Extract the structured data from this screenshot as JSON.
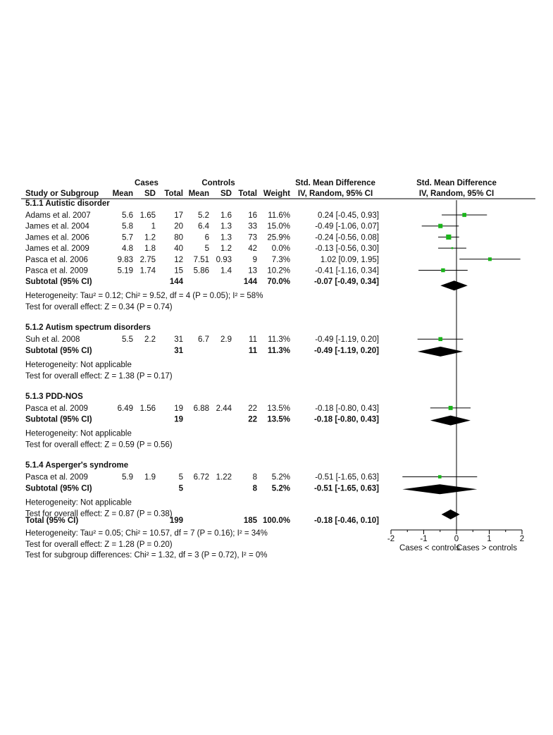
{
  "header": {
    "cases_label": "Cases",
    "controls_label": "Controls",
    "smd_title_left": "Std. Mean Difference",
    "smd_title_right": "Std. Mean Difference",
    "method_left": "IV, Random, 95% CI",
    "method_right": "IV, Random, 95% CI",
    "columns": [
      "Study or Subgroup",
      "Mean",
      "SD",
      "Total",
      "Mean",
      "SD",
      "Total",
      "Weight"
    ]
  },
  "chart_data": {
    "type": "forest",
    "xlim": [
      -2,
      2
    ],
    "xticks": [
      "-2",
      "-1",
      "0",
      "1",
      "2"
    ],
    "xlabel_left": "Cases < controls",
    "xlabel_right": "Cases > controls",
    "subgroups": [
      {
        "title": "5.1.1 Autistic disorder",
        "studies": [
          {
            "name": "Adams et al. 2007",
            "m1": "5.6",
            "sd1": "1.65",
            "n1": "17",
            "m2": "5.2",
            "sd2": "1.6",
            "n2": "16",
            "weight": "11.6%",
            "ci": "0.24 [-0.45, 0.93]",
            "est": 0.24,
            "lo": -0.45,
            "hi": 0.93,
            "w": 11.6
          },
          {
            "name": "James et al. 2004",
            "m1": "5.8",
            "sd1": "1",
            "n1": "20",
            "m2": "6.4",
            "sd2": "1.3",
            "n2": "33",
            "weight": "15.0%",
            "ci": "-0.49 [-1.06, 0.07]",
            "est": -0.49,
            "lo": -1.06,
            "hi": 0.07,
            "w": 15.0
          },
          {
            "name": "James et al. 2006",
            "m1": "5.7",
            "sd1": "1.2",
            "n1": "80",
            "m2": "6",
            "sd2": "1.3",
            "n2": "73",
            "weight": "25.9%",
            "ci": "-0.24 [-0.56, 0.08]",
            "est": -0.24,
            "lo": -0.56,
            "hi": 0.08,
            "w": 25.9
          },
          {
            "name": "James et al. 2009",
            "m1": "4.8",
            "sd1": "1.8",
            "n1": "40",
            "m2": "5",
            "sd2": "1.2",
            "n2": "42",
            "weight": "0.0%",
            "ci": "-0.13 [-0.56, 0.30]",
            "est": -0.13,
            "lo": -0.56,
            "hi": 0.3,
            "w": 0.0
          },
          {
            "name": "Pasca et al. 2006",
            "m1": "9.83",
            "sd1": "2.75",
            "n1": "12",
            "m2": "7.51",
            "sd2": "0.93",
            "n2": "9",
            "weight": "7.3%",
            "ci": "1.02 [0.09, 1.95]",
            "est": 1.02,
            "lo": 0.09,
            "hi": 1.95,
            "w": 7.3
          },
          {
            "name": "Pasca et al. 2009",
            "m1": "5.19",
            "sd1": "1.74",
            "n1": "15",
            "m2": "5.86",
            "sd2": "1.4",
            "n2": "13",
            "weight": "10.2%",
            "ci": "-0.41 [-1.16, 0.34]",
            "est": -0.41,
            "lo": -1.16,
            "hi": 0.34,
            "w": 10.2
          }
        ],
        "subtotal": {
          "label": "Subtotal (95% CI)",
          "n1": "144",
          "n2": "144",
          "weight": "70.0%",
          "ci": "-0.07 [-0.49, 0.34]",
          "est": -0.07,
          "lo": -0.49,
          "hi": 0.34
        },
        "heterogeneity": "Heterogeneity: Tau² = 0.12; Chi² = 9.52, df = 4 (P = 0.05); I² = 58%",
        "overall": "Test for overall effect: Z = 0.34 (P = 0.74)"
      },
      {
        "title": "5.1.2 Autism spectrum disorders",
        "studies": [
          {
            "name": "Suh et al. 2008",
            "m1": "5.5",
            "sd1": "2.2",
            "n1": "31",
            "m2": "6.7",
            "sd2": "2.9",
            "n2": "11",
            "weight": "11.3%",
            "ci": "-0.49 [-1.19, 0.20]",
            "est": -0.49,
            "lo": -1.19,
            "hi": 0.2,
            "w": 11.3
          }
        ],
        "subtotal": {
          "label": "Subtotal (95% CI)",
          "n1": "31",
          "n2": "11",
          "weight": "11.3%",
          "ci": "-0.49 [-1.19, 0.20]",
          "est": -0.49,
          "lo": -1.19,
          "hi": 0.2
        },
        "heterogeneity": "Heterogeneity: Not applicable",
        "overall": "Test for overall effect: Z = 1.38 (P = 0.17)"
      },
      {
        "title": "5.1.3 PDD-NOS",
        "studies": [
          {
            "name": "Pasca et al. 2009",
            "m1": "6.49",
            "sd1": "1.56",
            "n1": "19",
            "m2": "6.88",
            "sd2": "2.44",
            "n2": "22",
            "weight": "13.5%",
            "ci": "-0.18 [-0.80, 0.43]",
            "est": -0.18,
            "lo": -0.8,
            "hi": 0.43,
            "w": 13.5
          }
        ],
        "subtotal": {
          "label": "Subtotal (95% CI)",
          "n1": "19",
          "n2": "22",
          "weight": "13.5%",
          "ci": "-0.18 [-0.80, 0.43]",
          "est": -0.18,
          "lo": -0.8,
          "hi": 0.43
        },
        "heterogeneity": "Heterogeneity: Not applicable",
        "overall": "Test for overall effect: Z = 0.59 (P = 0.56)"
      },
      {
        "title": "5.1.4 Asperger's syndrome",
        "studies": [
          {
            "name": "Pasca et al. 2009",
            "m1": "5.9",
            "sd1": "1.9",
            "n1": "5",
            "m2": "6.72",
            "sd2": "1.22",
            "n2": "8",
            "weight": "5.2%",
            "ci": "-0.51 [-1.65, 0.63]",
            "est": -0.51,
            "lo": -1.65,
            "hi": 0.63,
            "w": 5.2
          }
        ],
        "subtotal": {
          "label": "Subtotal (95% CI)",
          "n1": "5",
          "n2": "8",
          "weight": "5.2%",
          "ci": "-0.51 [-1.65, 0.63]",
          "est": -0.51,
          "lo": -1.65,
          "hi": 0.63
        },
        "heterogeneity": "Heterogeneity: Not applicable",
        "overall": "Test for overall effect: Z = 0.87 (P = 0.38)"
      }
    ],
    "total": {
      "label": "Total (95% CI)",
      "n1": "199",
      "n2": "185",
      "weight": "100.0%",
      "ci": "-0.18 [-0.46, 0.10]",
      "est": -0.18,
      "lo": -0.46,
      "hi": 0.1
    },
    "total_heterogeneity": "Heterogeneity: Tau² = 0.05; Chi² = 10.57, df = 7 (P = 0.16); I² = 34%",
    "total_overall": "Test for overall effect: Z = 1.28 (P = 0.20)",
    "subgroup_test": "Test for subgroup differences: Chi² = 1.32, df = 3 (P = 0.72), I² = 0%",
    "colors": {
      "marker": "#1ab51a",
      "diamond": "#000000",
      "line": "#000000"
    }
  }
}
